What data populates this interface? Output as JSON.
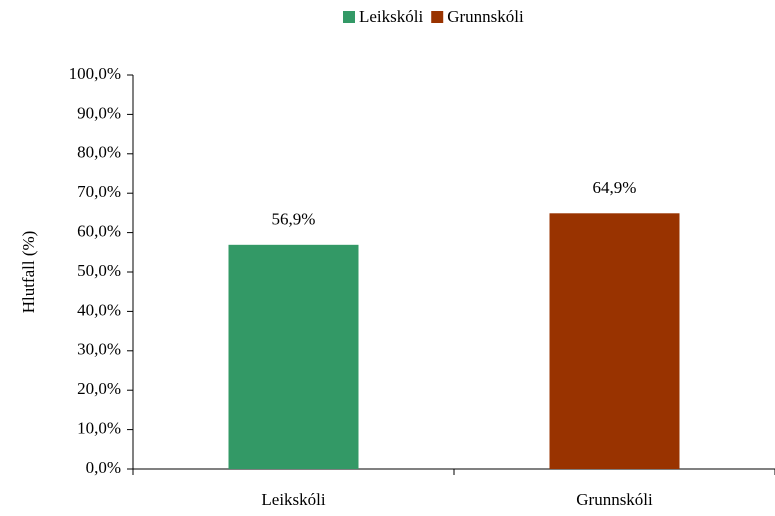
{
  "chart_data": {
    "type": "bar",
    "categories": [
      "Leikskóli",
      "Grunnskóli"
    ],
    "series": [
      {
        "name": "Leikskóli",
        "color": "#339966",
        "values": [
          56.9,
          null
        ],
        "value_labels": [
          "56,9%",
          null
        ]
      },
      {
        "name": "Grunnskóli",
        "color": "#993300",
        "values": [
          null,
          64.9
        ],
        "value_labels": [
          null,
          "64,9%"
        ]
      }
    ],
    "y_label": "Hlutfall (%)",
    "ylim": [
      0,
      100
    ],
    "yticks": [
      {
        "value": 0,
        "label": "0,0%"
      },
      {
        "value": 10,
        "label": "10,0%"
      },
      {
        "value": 20,
        "label": "20,0%"
      },
      {
        "value": 30,
        "label": "30,0%"
      },
      {
        "value": 40,
        "label": "40,0%"
      },
      {
        "value": 50,
        "label": "50,0%"
      },
      {
        "value": 60,
        "label": "60,0%"
      },
      {
        "value": 70,
        "label": "70,0%"
      },
      {
        "value": 80,
        "label": "80,0%"
      },
      {
        "value": 90,
        "label": "90,0%"
      },
      {
        "value": 100,
        "label": "100,0%"
      }
    ],
    "grid": false,
    "legend": "top"
  }
}
